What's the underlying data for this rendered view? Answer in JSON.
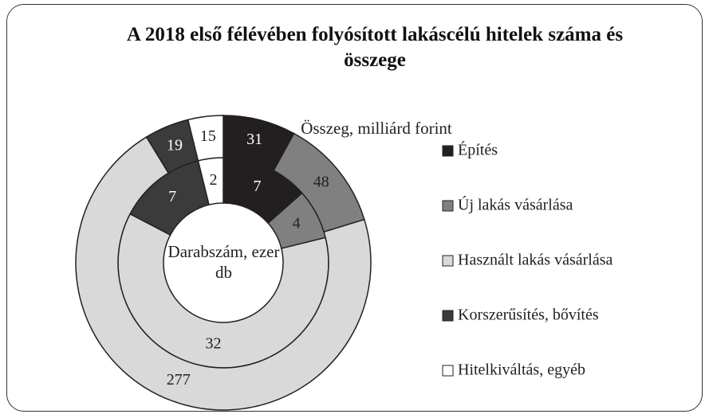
{
  "chart_data": {
    "type": "donut",
    "title": "A 2018 első félévében folyósított lakáscélú hitelek száma és összege",
    "categories": [
      "Építés",
      "Új lakás vásárlása",
      "Használt lakás vásárlása",
      "Korszerűsítés, bővítés",
      "Hitelkiváltás, egyéb"
    ],
    "colors": [
      "#231f20",
      "#808080",
      "#d9d9d9",
      "#3b3b3b",
      "#ffffff"
    ],
    "series": [
      {
        "name": "Darabszám, ezer db",
        "values": [
          7,
          4,
          32,
          7,
          2
        ]
      },
      {
        "name": "Összeg, milliárd forint",
        "values": [
          31,
          48,
          277,
          19,
          15
        ]
      }
    ],
    "legend": "right"
  }
}
